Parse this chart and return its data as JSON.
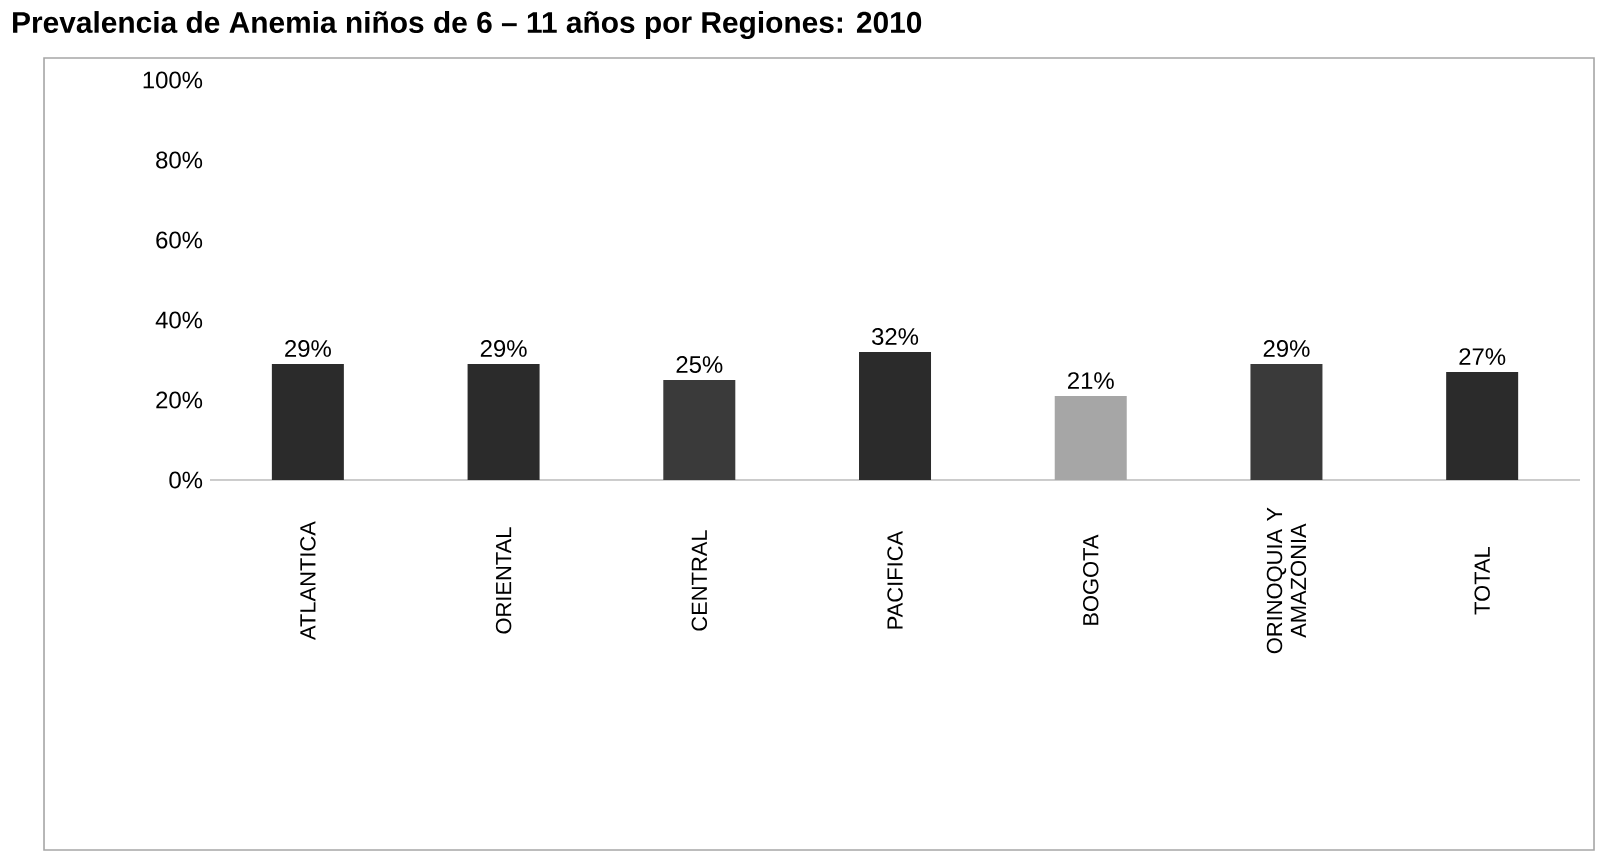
{
  "chart_data": {
    "type": "bar",
    "title": "Prevalencia de Anemia niños de 6 – 11 años por Regiones: 2010",
    "categories": [
      "ATLANTICA",
      "ORIENTAL",
      "CENTRAL",
      "PACIFICA",
      "BOGOTA",
      "ORINOQUIA Y AMAZONIA",
      "TOTAL"
    ],
    "values": [
      29,
      29,
      25,
      32,
      21,
      29,
      27
    ],
    "colors": [
      "#2b2b2b",
      "#2b2b2b",
      "#3a3a3a",
      "#2b2b2b",
      "#a6a6a6",
      "#3a3a3a",
      "#2b2b2b"
    ],
    "ylim": [
      0,
      100
    ],
    "yticks": [
      {
        "value": 0,
        "label": "0%"
      },
      {
        "value": 20,
        "label": "20%"
      },
      {
        "value": 40,
        "label": "40%"
      },
      {
        "value": 60,
        "label": "60%"
      },
      {
        "value": 80,
        "label": "80%"
      },
      {
        "value": 100,
        "label": "100%"
      }
    ],
    "data_labels": true,
    "value_labels": [
      "29%",
      "29%",
      "25%",
      "32%",
      "21%",
      "29%",
      "27%"
    ],
    "grid": false
  }
}
